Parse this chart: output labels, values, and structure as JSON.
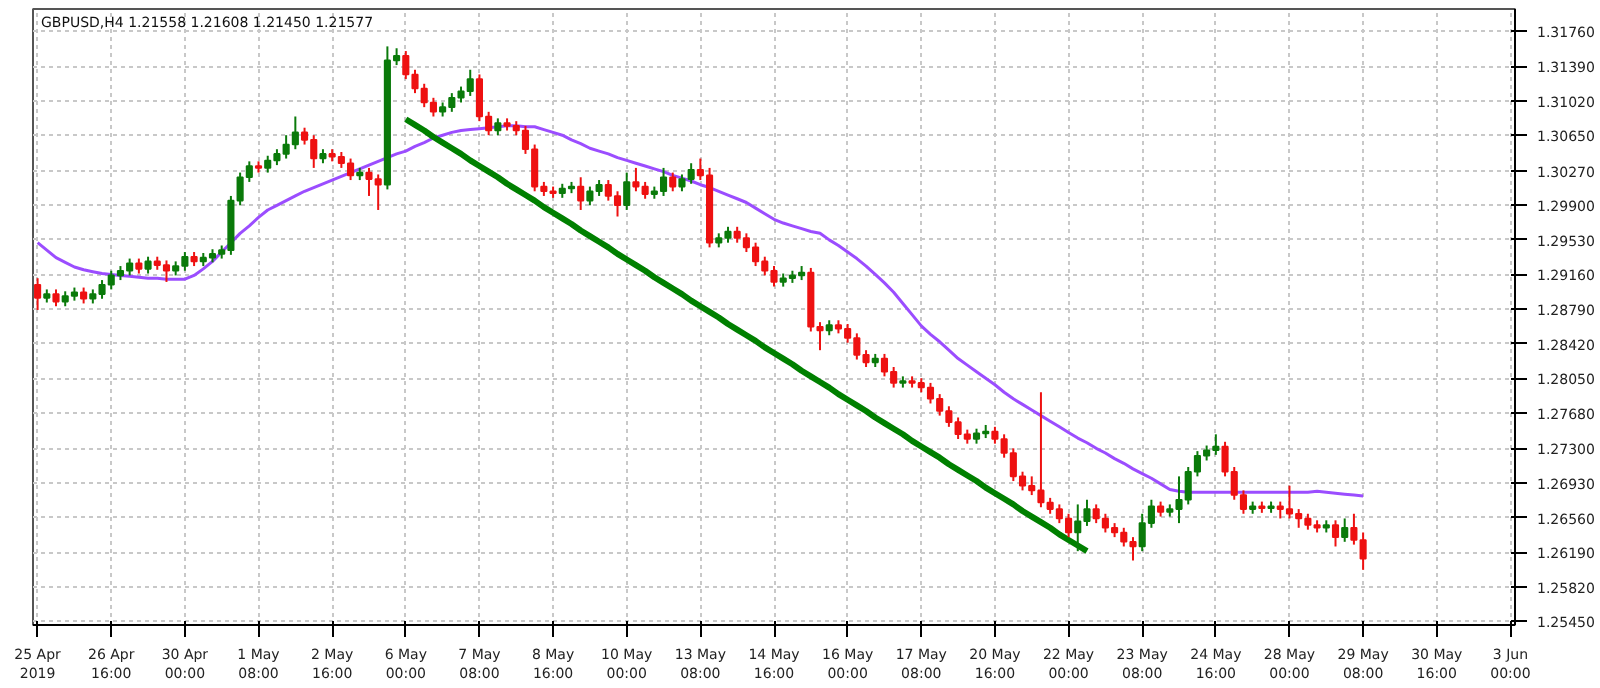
{
  "chart_data": {
    "type": "candlestick",
    "title": "GBPUSD,H4 1.21558 1.21608 1.21450 1.21577",
    "categories": [
      "25 Apr 2019",
      null,
      null,
      null,
      null,
      null,
      null,
      null,
      "26 Apr 16:00",
      null,
      null,
      null,
      null,
      null,
      null,
      null,
      "30 Apr 00:00",
      null,
      null,
      null,
      null,
      null,
      null,
      null,
      "1 May 08:00",
      null,
      null,
      null,
      null,
      null,
      null,
      null,
      "2 May 16:00",
      null,
      null,
      null,
      null,
      null,
      null,
      null,
      "6 May 00:00",
      null,
      null,
      null,
      null,
      null,
      null,
      null,
      "7 May 08:00",
      null,
      null,
      null,
      null,
      null,
      null,
      null,
      "8 May 16:00",
      null,
      null,
      null,
      null,
      null,
      null,
      null,
      "10 May 00:00",
      null,
      null,
      null,
      null,
      null,
      null,
      null,
      "13 May 08:00",
      null,
      null,
      null,
      null,
      null,
      null,
      null,
      "14 May 16:00",
      null,
      null,
      null,
      null,
      null,
      null,
      null,
      "16 May 00:00",
      null,
      null,
      null,
      null,
      null,
      null,
      null,
      "17 May 08:00",
      null,
      null,
      null,
      null,
      null,
      null,
      null,
      "20 May 16:00",
      null,
      null,
      null,
      null,
      null,
      null,
      null,
      "22 May 00:00",
      null,
      null,
      null,
      null,
      null,
      null,
      null,
      "23 May 08:00",
      null,
      null,
      null,
      null,
      null,
      null,
      null,
      "24 May 16:00",
      null,
      null,
      null,
      null,
      null,
      null,
      null,
      "28 May 00:00",
      null,
      null,
      null,
      null,
      null,
      null,
      null,
      "29 May 08:00",
      null,
      null,
      null,
      null,
      null,
      null,
      null,
      "30 May 16:00",
      null,
      null,
      null,
      null,
      null,
      null,
      null,
      "3 Jun 00:00"
    ],
    "ohlc": [
      [
        1.2905,
        1.2912,
        1.2878,
        1.2891
      ],
      [
        1.2891,
        1.29,
        1.2886,
        1.2895
      ],
      [
        1.2895,
        1.29,
        1.2882,
        1.2887
      ],
      [
        1.2887,
        1.2898,
        1.2882,
        1.2893
      ],
      [
        1.2893,
        1.2902,
        1.2888,
        1.2897
      ],
      [
        1.2897,
        1.2902,
        1.2885,
        1.289
      ],
      [
        1.289,
        1.29,
        1.2885,
        1.2895
      ],
      [
        1.2895,
        1.291,
        1.289,
        1.2905
      ],
      [
        1.2905,
        1.292,
        1.29,
        1.2915
      ],
      [
        1.2915,
        1.2925,
        1.291,
        1.292
      ],
      [
        1.292,
        1.2933,
        1.2915,
        1.2928
      ],
      [
        1.2928,
        1.2933,
        1.2917,
        1.2922
      ],
      [
        1.2922,
        1.2935,
        1.2917,
        1.293
      ],
      [
        1.293,
        1.2935,
        1.2921,
        1.2926
      ],
      [
        1.2926,
        1.2931,
        1.2908,
        1.292
      ],
      [
        1.292,
        1.293,
        1.2915,
        1.2925
      ],
      [
        1.2925,
        1.294,
        1.292,
        1.2935
      ],
      [
        1.2935,
        1.294,
        1.2925,
        1.293
      ],
      [
        1.293,
        1.2939,
        1.2925,
        1.2934
      ],
      [
        1.2934,
        1.2943,
        1.2929,
        1.2938
      ],
      [
        1.2938,
        1.2947,
        1.2933,
        1.2942
      ],
      [
        1.2942,
        1.3,
        1.2937,
        1.2995
      ],
      [
        1.2995,
        1.3025,
        1.299,
        1.302
      ],
      [
        1.302,
        1.3037,
        1.3015,
        1.3032
      ],
      [
        1.3032,
        1.3037,
        1.3025,
        1.303
      ],
      [
        1.303,
        1.3043,
        1.3025,
        1.3038
      ],
      [
        1.3038,
        1.305,
        1.3033,
        1.3045
      ],
      [
        1.3045,
        1.3065,
        1.304,
        1.3055
      ],
      [
        1.3055,
        1.3085,
        1.305,
        1.3068
      ],
      [
        1.3068,
        1.3073,
        1.3055,
        1.306
      ],
      [
        1.306,
        1.3065,
        1.303,
        1.304
      ],
      [
        1.304,
        1.305,
        1.3035,
        1.3045
      ],
      [
        1.3045,
        1.305,
        1.3037,
        1.3042
      ],
      [
        1.3042,
        1.3047,
        1.303,
        1.3035
      ],
      [
        1.3035,
        1.304,
        1.3017,
        1.3022
      ],
      [
        1.3022,
        1.303,
        1.3017,
        1.3025
      ],
      [
        1.3025,
        1.303,
        1.3,
        1.3018
      ],
      [
        1.3018,
        1.3023,
        1.2985,
        1.3012
      ],
      [
        1.3012,
        1.316,
        1.3007,
        1.3145
      ],
      [
        1.3145,
        1.3158,
        1.314,
        1.315
      ],
      [
        1.315,
        1.3155,
        1.3125,
        1.313
      ],
      [
        1.313,
        1.3135,
        1.311,
        1.3115
      ],
      [
        1.3115,
        1.312,
        1.3095,
        1.31
      ],
      [
        1.31,
        1.3105,
        1.3085,
        1.309
      ],
      [
        1.309,
        1.31,
        1.3085,
        1.3095
      ],
      [
        1.3095,
        1.311,
        1.309,
        1.3105
      ],
      [
        1.3105,
        1.3117,
        1.31,
        1.3112
      ],
      [
        1.3112,
        1.3135,
        1.3107,
        1.3125
      ],
      [
        1.3125,
        1.313,
        1.308,
        1.3085
      ],
      [
        1.3085,
        1.309,
        1.3065,
        1.307
      ],
      [
        1.307,
        1.3083,
        1.3065,
        1.3078
      ],
      [
        1.3078,
        1.3083,
        1.307,
        1.3075
      ],
      [
        1.3075,
        1.308,
        1.3065,
        1.307
      ],
      [
        1.307,
        1.3075,
        1.3045,
        1.305
      ],
      [
        1.305,
        1.3055,
        1.3005,
        1.301
      ],
      [
        1.301,
        1.3015,
        1.3,
        1.3005
      ],
      [
        1.3005,
        1.301,
        1.2998,
        1.3003
      ],
      [
        1.3003,
        1.3013,
        1.2998,
        1.3008
      ],
      [
        1.3008,
        1.3015,
        1.3003,
        1.301
      ],
      [
        1.301,
        1.302,
        1.2985,
        1.2995
      ],
      [
        1.2995,
        1.301,
        1.299,
        1.3005
      ],
      [
        1.3005,
        1.3017,
        1.3,
        1.3012
      ],
      [
        1.3012,
        1.3017,
        1.2995,
        1.3
      ],
      [
        1.3,
        1.3005,
        1.2978,
        1.299
      ],
      [
        1.299,
        1.3025,
        1.2985,
        1.3015
      ],
      [
        1.3015,
        1.303,
        1.3005,
        1.301
      ],
      [
        1.301,
        1.3015,
        1.2997,
        1.3002
      ],
      [
        1.3002,
        1.301,
        1.2997,
        1.3005
      ],
      [
        1.3005,
        1.303,
        1.3,
        1.302
      ],
      [
        1.302,
        1.3025,
        1.3005,
        1.301
      ],
      [
        1.301,
        1.3023,
        1.3005,
        1.3018
      ],
      [
        1.3018,
        1.3035,
        1.3013,
        1.3028
      ],
      [
        1.3028,
        1.304,
        1.3017,
        1.3022
      ],
      [
        1.3022,
        1.303,
        1.2945,
        1.295
      ],
      [
        1.295,
        1.296,
        1.2945,
        1.2955
      ],
      [
        1.2955,
        1.2967,
        1.295,
        1.2962
      ],
      [
        1.2962,
        1.2967,
        1.295,
        1.2955
      ],
      [
        1.2955,
        1.296,
        1.294,
        1.2945
      ],
      [
        1.2945,
        1.295,
        1.2925,
        1.293
      ],
      [
        1.293,
        1.2935,
        1.2915,
        1.292
      ],
      [
        1.292,
        1.2925,
        1.2903,
        1.2908
      ],
      [
        1.2908,
        1.2917,
        1.2903,
        1.2912
      ],
      [
        1.2912,
        1.292,
        1.2907,
        1.2915
      ],
      [
        1.2915,
        1.2925,
        1.291,
        1.2918
      ],
      [
        1.2918,
        1.2923,
        1.2855,
        1.286
      ],
      [
        1.286,
        1.2865,
        1.2835,
        1.2856
      ],
      [
        1.2856,
        1.2867,
        1.2851,
        1.2862
      ],
      [
        1.2862,
        1.2867,
        1.2853,
        1.2858
      ],
      [
        1.2858,
        1.2863,
        1.2843,
        1.2848
      ],
      [
        1.2848,
        1.2853,
        1.2825,
        1.283
      ],
      [
        1.283,
        1.2835,
        1.2817,
        1.2822
      ],
      [
        1.2822,
        1.2831,
        1.2817,
        1.2826
      ],
      [
        1.2826,
        1.2831,
        1.2807,
        1.2812
      ],
      [
        1.2812,
        1.2817,
        1.2795,
        1.28
      ],
      [
        1.28,
        1.2807,
        1.2795,
        1.2802
      ],
      [
        1.2802,
        1.2807,
        1.2795,
        1.28
      ],
      [
        1.28,
        1.2805,
        1.279,
        1.2795
      ],
      [
        1.2795,
        1.28,
        1.2778,
        1.2783
      ],
      [
        1.2783,
        1.2788,
        1.2765,
        1.277
      ],
      [
        1.277,
        1.2775,
        1.2753,
        1.2758
      ],
      [
        1.2758,
        1.2763,
        1.274,
        1.2745
      ],
      [
        1.2745,
        1.275,
        1.2735,
        1.274
      ],
      [
        1.274,
        1.2751,
        1.2735,
        1.2746
      ],
      [
        1.2746,
        1.2755,
        1.2741,
        1.2748
      ],
      [
        1.2748,
        1.2753,
        1.2735,
        1.274
      ],
      [
        1.274,
        1.2745,
        1.272,
        1.2725
      ],
      [
        1.2725,
        1.273,
        1.2695,
        1.27
      ],
      [
        1.27,
        1.2705,
        1.2685,
        1.269
      ],
      [
        1.269,
        1.27,
        1.268,
        1.2685
      ],
      [
        1.2685,
        1.279,
        1.2667,
        1.2672
      ],
      [
        1.2672,
        1.2677,
        1.266,
        1.2665
      ],
      [
        1.2665,
        1.267,
        1.265,
        1.2655
      ],
      [
        1.2655,
        1.266,
        1.2635,
        1.264
      ],
      [
        1.264,
        1.267,
        1.262,
        1.2652
      ],
      [
        1.2652,
        1.2675,
        1.2647,
        1.2665
      ],
      [
        1.2665,
        1.267,
        1.265,
        1.2655
      ],
      [
        1.2655,
        1.266,
        1.264,
        1.2645
      ],
      [
        1.2645,
        1.265,
        1.2635,
        1.264
      ],
      [
        1.264,
        1.2645,
        1.2625,
        1.263
      ],
      [
        1.263,
        1.2635,
        1.261,
        1.2625
      ],
      [
        1.2625,
        1.266,
        1.262,
        1.265
      ],
      [
        1.265,
        1.2675,
        1.2645,
        1.2668
      ],
      [
        1.2668,
        1.2673,
        1.2657,
        1.2662
      ],
      [
        1.2662,
        1.267,
        1.2657,
        1.2665
      ],
      [
        1.2665,
        1.27,
        1.265,
        1.2675
      ],
      [
        1.2675,
        1.271,
        1.267,
        1.2705
      ],
      [
        1.2705,
        1.2727,
        1.27,
        1.2722
      ],
      [
        1.2722,
        1.2733,
        1.2717,
        1.2728
      ],
      [
        1.2728,
        1.2745,
        1.2723,
        1.2732
      ],
      [
        1.2732,
        1.2737,
        1.27,
        1.2705
      ],
      [
        1.2705,
        1.271,
        1.2675,
        1.268
      ],
      [
        1.268,
        1.2685,
        1.266,
        1.2665
      ],
      [
        1.2665,
        1.2673,
        1.266,
        1.2668
      ],
      [
        1.2668,
        1.2673,
        1.2661,
        1.2666
      ],
      [
        1.2666,
        1.2673,
        1.2661,
        1.2668
      ],
      [
        1.2668,
        1.2673,
        1.2655,
        1.2665
      ],
      [
        1.2665,
        1.269,
        1.2655,
        1.266
      ],
      [
        1.266,
        1.2665,
        1.2645,
        1.2655
      ],
      [
        1.2655,
        1.266,
        1.2643,
        1.2648
      ],
      [
        1.2648,
        1.2653,
        1.264,
        1.2645
      ],
      [
        1.2645,
        1.2653,
        1.264,
        1.2648
      ],
      [
        1.2648,
        1.2653,
        1.2625,
        1.2635
      ],
      [
        1.2635,
        1.2655,
        1.263,
        1.2645
      ],
      [
        1.2645,
        1.266,
        1.2627,
        1.2632
      ],
      [
        1.2632,
        1.264,
        1.26,
        1.2612
      ],
      null,
      null,
      null,
      null,
      null,
      null,
      null,
      null,
      null,
      null,
      null,
      null,
      null,
      null,
      null,
      null
    ],
    "series": [
      {
        "type": "line",
        "color": "#9b4dff",
        "values": [
          1.295,
          1.2942,
          1.2934,
          1.2929,
          1.2924,
          1.2921,
          1.2919,
          1.2917,
          1.2916,
          1.2915,
          1.2914,
          1.2913,
          1.2912,
          1.2912,
          1.2911,
          1.2911,
          1.2911,
          1.2915,
          1.2922,
          1.293,
          1.294,
          1.295,
          1.296,
          1.2968,
          1.2977,
          1.2985,
          1.299,
          1.2995,
          1.3,
          1.3005,
          1.3009,
          1.3013,
          1.3017,
          1.3021,
          1.3025,
          1.3029,
          1.3033,
          1.3037,
          1.3041,
          1.3045,
          1.3048,
          1.3053,
          1.3057,
          1.3062,
          1.3065,
          1.3068,
          1.307,
          1.3071,
          1.3072,
          1.3073,
          1.3074,
          1.3075,
          1.3075,
          1.3074,
          1.3074,
          1.3071,
          1.3068,
          1.3065,
          1.306,
          1.3056,
          1.3051,
          1.3048,
          1.3045,
          1.3041,
          1.3038,
          1.3035,
          1.3032,
          1.3029,
          1.3026,
          1.3022,
          1.3019,
          1.3016,
          1.3012,
          1.3009,
          1.3005,
          1.3001,
          1.2997,
          1.2993,
          1.2987,
          1.2981,
          1.2975,
          1.2971,
          1.2968,
          1.2965,
          1.2962,
          1.296,
          1.2953,
          1.2947,
          1.294,
          1.2933,
          1.2925,
          1.2916,
          1.2907,
          1.2897,
          1.2885,
          1.2873,
          1.2861,
          1.2852,
          1.2844,
          1.2835,
          1.2826,
          1.2819,
          1.2812,
          1.2805,
          1.2798,
          1.279,
          1.2783,
          1.2777,
          1.2771,
          1.2765,
          1.2759,
          1.2753,
          1.2747,
          1.2741,
          1.2736,
          1.273,
          1.2725,
          1.2719,
          1.2714,
          1.2708,
          1.2703,
          1.2698,
          1.2692,
          1.2686,
          1.2684,
          1.2683,
          1.2683,
          1.2683,
          1.2683,
          1.2683,
          1.2683,
          1.2683,
          1.2683,
          1.2683,
          1.2683,
          1.2683,
          1.2683,
          1.2683,
          1.2683,
          1.2684,
          1.2683,
          1.2682,
          1.2681,
          1.268,
          1.2679,
          null,
          null,
          null,
          null,
          null,
          null,
          null,
          null,
          null,
          null,
          null,
          null,
          null,
          null,
          null,
          null
        ]
      },
      {
        "type": "line",
        "color": "#008000",
        "values": [
          null,
          null,
          null,
          null,
          null,
          null,
          null,
          null,
          null,
          null,
          null,
          null,
          null,
          null,
          null,
          null,
          null,
          null,
          null,
          null,
          null,
          null,
          null,
          null,
          null,
          null,
          null,
          null,
          null,
          null,
          null,
          null,
          null,
          null,
          null,
          null,
          null,
          null,
          null,
          null,
          1.3082,
          1.3076,
          1.307,
          1.3063,
          1.3057,
          1.3051,
          1.3045,
          1.3038,
          1.3032,
          1.3026,
          1.302,
          1.3013,
          1.3007,
          1.3001,
          1.2995,
          1.2988,
          1.2982,
          1.2976,
          1.297,
          1.2963,
          1.2957,
          1.2951,
          1.2945,
          1.2938,
          1.2932,
          1.2926,
          1.292,
          1.2913,
          1.2907,
          1.2901,
          1.2895,
          1.2888,
          1.2882,
          1.2876,
          1.287,
          1.2863,
          1.2857,
          1.2851,
          1.2845,
          1.2838,
          1.2832,
          1.2826,
          1.282,
          1.2813,
          1.2807,
          1.2801,
          1.2795,
          1.2788,
          1.2782,
          1.2776,
          1.277,
          1.2763,
          1.2757,
          1.2751,
          1.2745,
          1.2738,
          1.2732,
          1.2726,
          1.272,
          1.2713,
          1.2707,
          1.2701,
          1.2695,
          1.2688,
          1.2682,
          1.2676,
          1.267,
          1.2663,
          1.2657,
          1.2651,
          1.2645,
          1.2638,
          1.2632,
          1.2626,
          1.262,
          null,
          null,
          null,
          null,
          null,
          null,
          null,
          null,
          null,
          null,
          null,
          null,
          null,
          null,
          null,
          null,
          null,
          null,
          null,
          null,
          null,
          null,
          null,
          null,
          null,
          null,
          null,
          null,
          null,
          null,
          null,
          null,
          null,
          null,
          null,
          null,
          null,
          null,
          null,
          null,
          null,
          null,
          null,
          null,
          null,
          null
        ]
      }
    ],
    "ylim": [
      1.2541,
      1.32
    ],
    "yticks": [
      {
        "value": 1.2545,
        "label": "1.25450"
      },
      {
        "value": 1.2582,
        "label": "1.25820"
      },
      {
        "value": 1.2619,
        "label": "1.26190"
      },
      {
        "value": 1.2656,
        "label": "1.26560"
      },
      {
        "value": 1.2693,
        "label": "1.26930"
      },
      {
        "value": 1.273,
        "label": "1.27300"
      },
      {
        "value": 1.2768,
        "label": "1.27680"
      },
      {
        "value": 1.2805,
        "label": "1.28050"
      },
      {
        "value": 1.2842,
        "label": "1.28420"
      },
      {
        "value": 1.2879,
        "label": "1.28790"
      },
      {
        "value": 1.2916,
        "label": "1.29160"
      },
      {
        "value": 1.2953,
        "label": "1.29530"
      },
      {
        "value": 1.299,
        "label": "1.29900"
      },
      {
        "value": 1.3027,
        "label": "1.30270"
      },
      {
        "value": 1.3065,
        "label": "1.30650"
      },
      {
        "value": 1.3102,
        "label": "1.31020"
      },
      {
        "value": 1.3139,
        "label": "1.31390"
      },
      {
        "value": 1.3176,
        "label": "1.31760"
      }
    ],
    "grid": true
  }
}
